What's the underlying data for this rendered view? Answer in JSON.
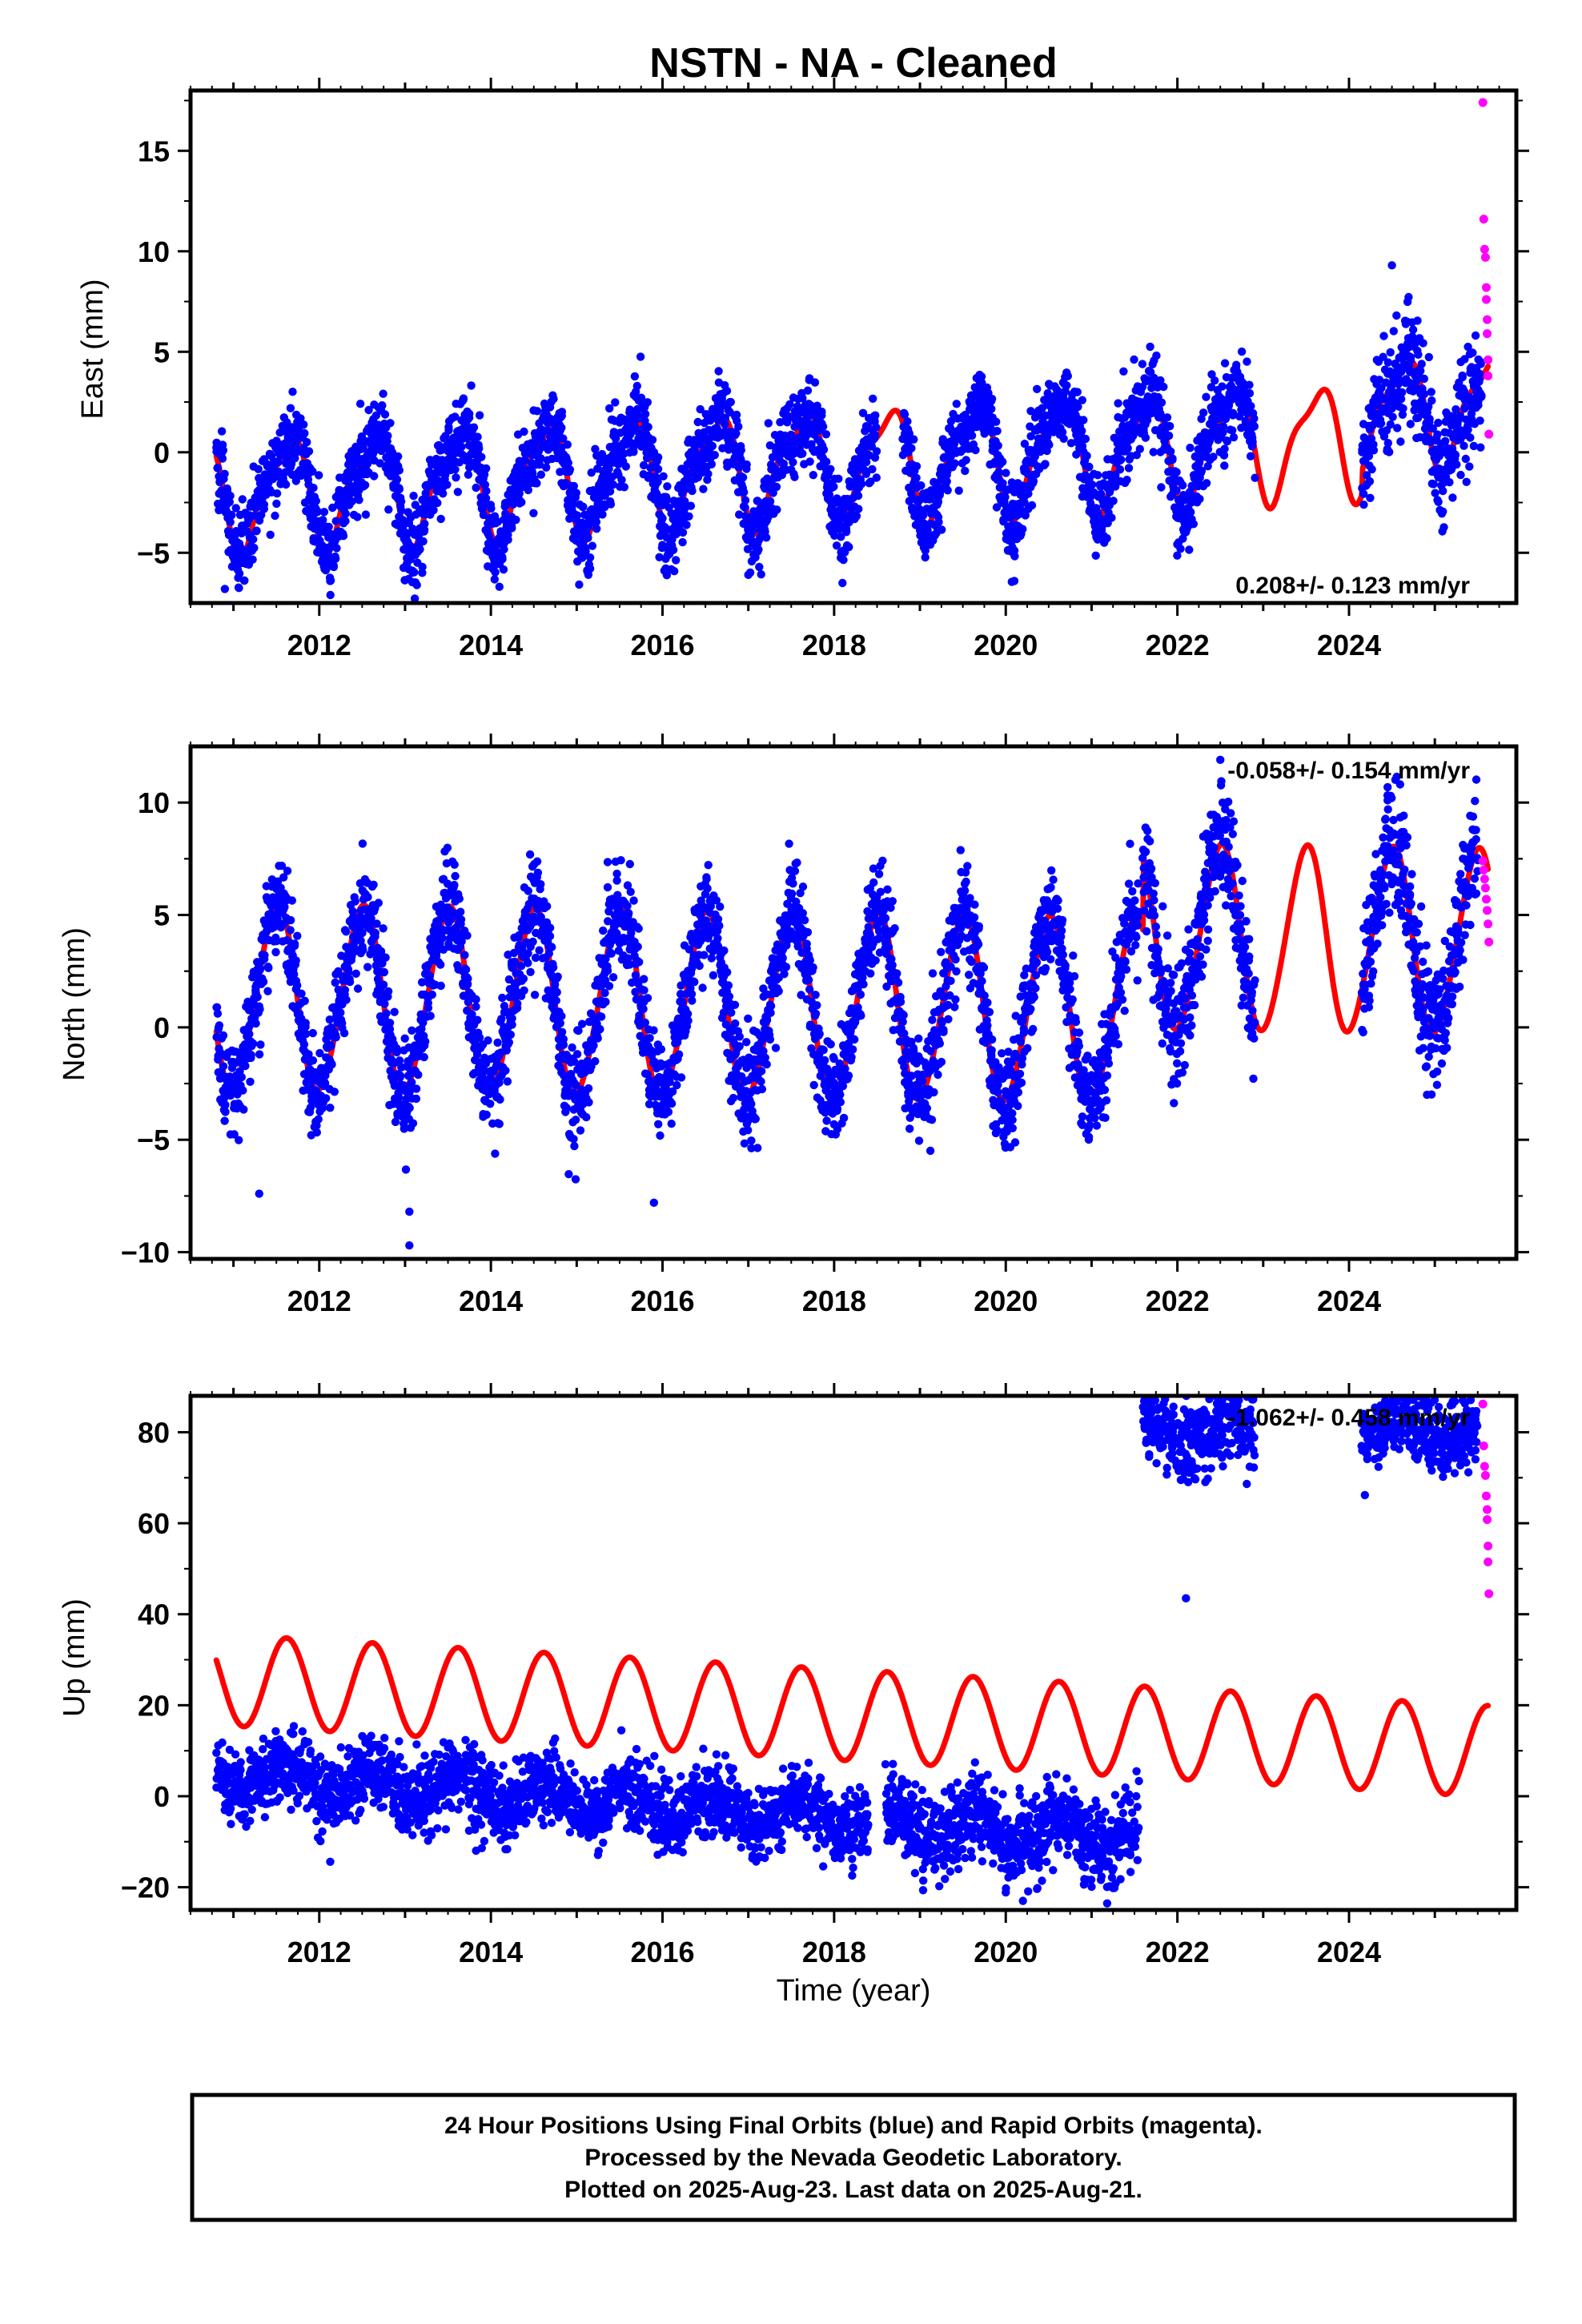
{
  "title": "NSTN  - NA - Cleaned",
  "colors": {
    "final_orbits": "#0000ff",
    "rapid_orbits": "#ff00ff",
    "model": "#ff0000",
    "frame": "#000000",
    "background": "#ffffff"
  },
  "footer": {
    "line1": "24 Hour Positions Using Final Orbits (blue) and Rapid Orbits (magenta).",
    "line2": "Processed by the Nevada Geodetic Laboratory.",
    "line3": "Plotted on 2025-Aug-23. Last data on 2025-Aug-21."
  },
  "chart_data": [
    {
      "type": "scatter",
      "component": "East",
      "ylabel": "East (mm)",
      "xlabel": "",
      "xlim": [
        2010.5,
        2025.95
      ],
      "ylim": [
        -7.5,
        18
      ],
      "xticks": [
        2012,
        2014,
        2016,
        2018,
        2020,
        2022,
        2024
      ],
      "xtick_labels": [
        "2012",
        "2014",
        "2016",
        "2018",
        "2020",
        "2022",
        "2024"
      ],
      "yticks": [
        -5,
        0,
        5,
        10,
        15
      ],
      "ytick_labels": [
        "−5",
        "0",
        "5",
        "10",
        "15"
      ],
      "rate_label": "0.208+/- 0.123 mm/yr",
      "rate_position": "bottom-right",
      "model": {
        "base": -0.6,
        "trend": 0.208,
        "annual_amp": 2.6,
        "annual_peak": 0.62,
        "semiannual_amp": 0.8,
        "semiannual_peak": 0.3
      },
      "offsets": [
        {
          "year": 2024.15,
          "shift": 1.2
        }
      ],
      "final_orbits_segments": [
        {
          "start": 2010.8,
          "end": 2018.5,
          "noise": 1.0
        },
        {
          "start": 2018.8,
          "end": 2022.9,
          "noise": 1.0
        },
        {
          "start": 2024.15,
          "end": 2025.55,
          "noise": 1.3
        }
      ],
      "final_orbits_outliers": [
        {
          "x": 2010.9,
          "y": -6.8
        },
        {
          "x": 2013.2,
          "y": -6.0
        },
        {
          "x": 2017.0,
          "y": -6.1
        },
        {
          "x": 2020.1,
          "y": -6.4
        },
        {
          "x": 2024.5,
          "y": 9.3
        }
      ],
      "rapid_orbits": [
        {
          "x": 2025.56,
          "y": 17.4
        },
        {
          "x": 2025.57,
          "y": 11.6
        },
        {
          "x": 2025.58,
          "y": 10.1
        },
        {
          "x": 2025.59,
          "y": 9.7
        },
        {
          "x": 2025.6,
          "y": 8.2
        },
        {
          "x": 2025.6,
          "y": 7.6
        },
        {
          "x": 2025.61,
          "y": 6.6
        },
        {
          "x": 2025.61,
          "y": 5.9
        },
        {
          "x": 2025.62,
          "y": 4.6
        },
        {
          "x": 2025.62,
          "y": 3.8
        },
        {
          "x": 2025.63,
          "y": 0.9
        }
      ]
    },
    {
      "type": "scatter",
      "component": "North",
      "ylabel": "North (mm)",
      "xlabel": "",
      "xlim": [
        2010.5,
        2025.95
      ],
      "ylim": [
        -10.3,
        12.5
      ],
      "xticks": [
        2012,
        2014,
        2016,
        2018,
        2020,
        2022,
        2024
      ],
      "xtick_labels": [
        "2012",
        "2014",
        "2016",
        "2018",
        "2020",
        "2022",
        "2024"
      ],
      "yticks": [
        -10,
        -5,
        0,
        5,
        10
      ],
      "ytick_labels": [
        "−10",
        "−5",
        "0",
        "5",
        "10"
      ],
      "rate_label": "-0.058+/- 0.154 mm/yr",
      "rate_position": "top-right",
      "model": {
        "base": 0.9,
        "trend": -0.058,
        "annual_amp": 4.1,
        "annual_peak": 0.5,
        "semiannual_amp": 0.3,
        "semiannual_peak": 0.1
      },
      "offsets": [
        {
          "year": 2021.6,
          "shift": 3.3
        }
      ],
      "final_orbits_segments": [
        {
          "start": 2010.8,
          "end": 2021.55,
          "noise": 1.1
        },
        {
          "start": 2021.6,
          "end": 2022.9,
          "noise": 1.4
        },
        {
          "start": 2024.15,
          "end": 2025.5,
          "noise": 1.4
        }
      ],
      "final_orbits_outliers": [
        {
          "x": 2011.3,
          "y": -7.4
        },
        {
          "x": 2013.05,
          "y": -9.7
        },
        {
          "x": 2013.05,
          "y": -8.2
        },
        {
          "x": 2015.9,
          "y": -7.8
        },
        {
          "x": 2022.5,
          "y": 11.9
        },
        {
          "x": 2024.45,
          "y": 10.1
        }
      ],
      "rapid_orbits": [
        {
          "x": 2025.56,
          "y": 7.4
        },
        {
          "x": 2025.57,
          "y": 7.0
        },
        {
          "x": 2025.58,
          "y": 6.6
        },
        {
          "x": 2025.59,
          "y": 6.2
        },
        {
          "x": 2025.6,
          "y": 5.7
        },
        {
          "x": 2025.61,
          "y": 5.2
        },
        {
          "x": 2025.62,
          "y": 4.6
        },
        {
          "x": 2025.63,
          "y": 3.8
        }
      ]
    },
    {
      "type": "scatter",
      "component": "Up",
      "ylabel": "Up (mm)",
      "xlabel": "Time (year)",
      "xlim": [
        2010.5,
        2025.95
      ],
      "ylim": [
        -25,
        88
      ],
      "xticks": [
        2012,
        2014,
        2016,
        2018,
        2020,
        2022,
        2024
      ],
      "xtick_labels": [
        "2012",
        "2014",
        "2016",
        "2018",
        "2020",
        "2022",
        "2024"
      ],
      "yticks": [
        -20,
        0,
        20,
        40,
        60,
        80
      ],
      "ytick_labels": [
        "−20",
        "0",
        "20",
        "40",
        "60",
        "80"
      ],
      "rate_label": "-1.062+/- 0.458 mm/yr",
      "rate_position": "top-right",
      "model": {
        "base": 18,
        "trend": -1.062,
        "annual_amp": 10.0,
        "annual_peak": 0.62,
        "semiannual_amp": 0,
        "semiannual_peak": 0
      },
      "data_model": {
        "base": 5,
        "trend": -1.35,
        "annual_amp": 3.5,
        "annual_peak": 0.62
      },
      "final_orbits_segments": [
        {
          "start": 2010.8,
          "end": 2018.4,
          "noise": 4.0,
          "offset": 0
        },
        {
          "start": 2018.6,
          "end": 2021.55,
          "noise": 4.5,
          "offset": 0
        },
        {
          "start": 2021.6,
          "end": 2022.9,
          "noise": 4.5,
          "offset": 77
        },
        {
          "start": 2024.15,
          "end": 2025.5,
          "noise": 4.0,
          "offset": 78
        }
      ],
      "final_orbits_outliers": [
        {
          "x": 2022.1,
          "y": 43.5
        },
        {
          "x": 2022.6,
          "y": 83.5
        },
        {
          "x": 2024.75,
          "y": 76.0
        },
        {
          "x": 2020.2,
          "y": -23.0
        }
      ],
      "rapid_orbits": [
        {
          "x": 2025.56,
          "y": 86.2
        },
        {
          "x": 2025.57,
          "y": 77.0
        },
        {
          "x": 2025.58,
          "y": 72.5
        },
        {
          "x": 2025.59,
          "y": 70.5
        },
        {
          "x": 2025.6,
          "y": 66.0
        },
        {
          "x": 2025.61,
          "y": 63.0
        },
        {
          "x": 2025.61,
          "y": 60.8
        },
        {
          "x": 2025.62,
          "y": 55.0
        },
        {
          "x": 2025.62,
          "y": 51.5
        },
        {
          "x": 2025.63,
          "y": 44.5
        }
      ]
    }
  ]
}
